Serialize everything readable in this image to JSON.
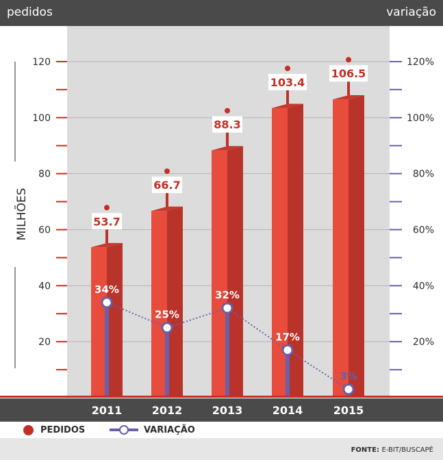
{
  "header": {
    "left_label": "pedidos",
    "right_label": "variação"
  },
  "axis": {
    "left_title": "MILHÕES"
  },
  "legend": {
    "pedidos": "PEDIDOS",
    "variacao": "VARIAÇÃO"
  },
  "footer": {
    "source_key": "FONTE:",
    "source_value": "E-BIT/BUSCAPÉ"
  },
  "colors": {
    "bar_front": "#e74c3c",
    "bar_side": "#b8342a",
    "accent_red": "#c62d24",
    "line": "#6a5fa9",
    "dark_bar": "#4a4a4a",
    "plot_bg": "#dcdcdc"
  },
  "chart_data": {
    "type": "bar",
    "categories": [
      "2011",
      "2012",
      "2013",
      "2014",
      "2015"
    ],
    "series": [
      {
        "name": "PEDIDOS",
        "values": [
          53.7,
          66.7,
          88.3,
          103.4,
          106.5
        ],
        "labels": [
          "53.7",
          "66.7",
          "88.3",
          "103.4",
          "106.5"
        ]
      },
      {
        "name": "VARIAÇÃO",
        "type": "line",
        "values": [
          34,
          25,
          32,
          17,
          3
        ],
        "labels": [
          "34%",
          "25%",
          "32%",
          "17%",
          "3%"
        ]
      }
    ],
    "y_left": {
      "min": 0,
      "max": 120,
      "ticks": [
        "20",
        "40",
        "60",
        "80",
        "100",
        "120"
      ],
      "tick_values": [
        20,
        40,
        60,
        80,
        100,
        120
      ],
      "label": "MILHÕES"
    },
    "y_right": {
      "min": 0,
      "max": 120,
      "ticks": [
        "20%",
        "40%",
        "60%",
        "80%",
        "100%",
        "120%"
      ],
      "tick_values": [
        20,
        40,
        60,
        80,
        100,
        120
      ]
    },
    "legend": "bottom-left",
    "grid": true
  }
}
